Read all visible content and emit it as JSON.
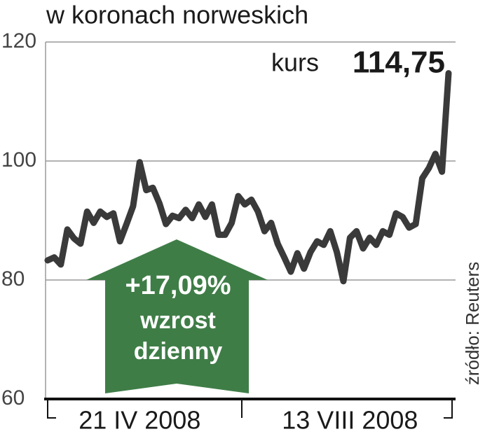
{
  "chart_data": {
    "type": "line",
    "title": "w koronach norweskich",
    "categories": [
      null,
      null,
      null,
      null,
      null,
      null,
      null,
      null,
      null,
      null,
      null,
      null,
      null,
      null,
      "21 IV 2008",
      null,
      null,
      null,
      null,
      null,
      null,
      null,
      null,
      null,
      null,
      null,
      null,
      null,
      null,
      null,
      null,
      null,
      null,
      null,
      null,
      null,
      null,
      null,
      null,
      null,
      null,
      null,
      null,
      null,
      null,
      null,
      "13 VIII 2008",
      null,
      null,
      null,
      null,
      null,
      null,
      null,
      null,
      null,
      null,
      null,
      null,
      null,
      null,
      null
    ],
    "series": [
      {
        "name": "kurs",
        "color": "#3a3a3a",
        "values": [
          83.3,
          83.8,
          82.6,
          88.5,
          87,
          86.1,
          91.5,
          89.6,
          91.5,
          90.6,
          91.2,
          86.5,
          89.4,
          92.4,
          99.8,
          95.1,
          95.5,
          92.9,
          89.4,
          90.8,
          90.4,
          91.8,
          90.4,
          92.7,
          90.6,
          92.7,
          87.6,
          87.6,
          89.6,
          94.1,
          92.7,
          93.5,
          91.5,
          88.2,
          89.6,
          86.1,
          83.8,
          81.4,
          84.5,
          81.9,
          84.7,
          86.5,
          85.9,
          88.2,
          84.7,
          79.8,
          87.1,
          88.2,
          85.3,
          87.1,
          85.9,
          88.2,
          87.6,
          91.2,
          90.6,
          88.8,
          89.4,
          97.1,
          98.8,
          101.2,
          98.2,
          114.75
        ]
      }
    ],
    "ylim": [
      60,
      120
    ],
    "yticks": [
      60,
      80,
      100,
      120
    ],
    "grid": true,
    "annotation": {
      "label": "kurs",
      "value": "114,75"
    },
    "arrow": {
      "change": "+17,09%",
      "line1": "wzrost",
      "line2": "dzienny",
      "color": "#3f7d47"
    },
    "source": "źródło: Reuters"
  }
}
